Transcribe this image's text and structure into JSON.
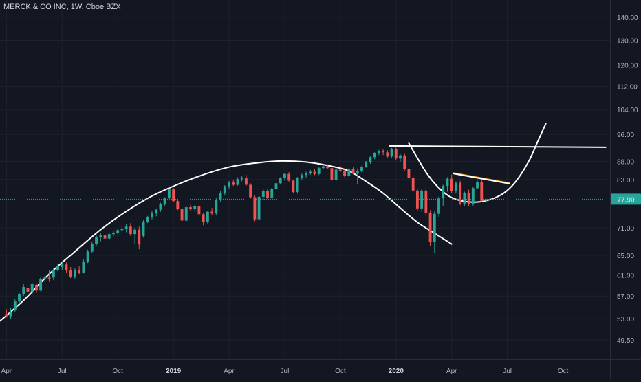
{
  "chart_data": {
    "type": "candlestick",
    "title": "MERCK & CO INC, 1W, Cboe BZX",
    "y_scale": "log",
    "ylim": [
      46.5,
      148
    ],
    "y_ticks": [
      "140.00",
      "130.00",
      "120.00",
      "112.00",
      "104.00",
      "96.00",
      "88.00",
      "83.00",
      "77.90",
      "71.00",
      "65.00",
      "61.00",
      "57.00",
      "53.00",
      "49.50"
    ],
    "y_tick_values": [
      140,
      130,
      120,
      112,
      104,
      96,
      88,
      83,
      77.9,
      71,
      65,
      61,
      57,
      53,
      49.5
    ],
    "x_ticks": [
      "Apr",
      "Jul",
      "Oct",
      "2019",
      "Apr",
      "Jul",
      "Oct",
      "2020",
      "Apr",
      "Jul",
      "Oct"
    ],
    "x_tick_bold": [
      false,
      false,
      false,
      true,
      false,
      false,
      false,
      true,
      false,
      false,
      false
    ],
    "x_tick_weeks": [
      0,
      13,
      26,
      39,
      52,
      65,
      78,
      91,
      104,
      117,
      130
    ],
    "x_domain_weeks": [
      -1.5,
      141
    ],
    "last_price": "77.90",
    "last_price_value": 77.9,
    "hidden_label": "77.90",
    "colors": {
      "up": "#26a69a",
      "down": "#ef5350",
      "background": "#131722",
      "grid": "#1e222d",
      "text": "#b2b5be",
      "drawing": "#ffffff",
      "trend": "#ff9800",
      "price_line": "#26a69a"
    },
    "candles_ohlc": [
      [
        53.8,
        54.6,
        53.2,
        53.4
      ],
      [
        53.4,
        54.9,
        53.0,
        54.2
      ],
      [
        54.5,
        56.4,
        54.1,
        56.0
      ],
      [
        56.0,
        57.7,
        55.6,
        57.4
      ],
      [
        57.4,
        59.3,
        57.0,
        58.7
      ],
      [
        58.5,
        59.1,
        57.4,
        57.8
      ],
      [
        57.8,
        59.7,
        57.3,
        59.3
      ],
      [
        59.1,
        59.4,
        57.6,
        58.0
      ],
      [
        58.0,
        60.6,
        57.8,
        60.3
      ],
      [
        60.3,
        61.1,
        59.6,
        60.6
      ],
      [
        60.5,
        61.9,
        59.8,
        60.3
      ],
      [
        60.5,
        62.4,
        60.0,
        62.0
      ],
      [
        62.0,
        63.3,
        61.7,
        62.8
      ],
      [
        62.6,
        63.6,
        61.9,
        63.1
      ],
      [
        63.1,
        63.5,
        61.5,
        62.0
      ],
      [
        62.0,
        62.6,
        60.4,
        60.7
      ],
      [
        60.7,
        62.4,
        60.3,
        62.0
      ],
      [
        62.0,
        62.7,
        61.2,
        61.5
      ],
      [
        61.5,
        64.2,
        61.3,
        63.7
      ],
      [
        63.7,
        66.2,
        63.4,
        65.8
      ],
      [
        65.8,
        68.0,
        65.5,
        67.5
      ],
      [
        67.5,
        69.4,
        67.0,
        68.9
      ],
      [
        68.9,
        69.8,
        68.0,
        69.3
      ],
      [
        69.3,
        69.9,
        68.4,
        68.6
      ],
      [
        68.6,
        70.0,
        68.3,
        69.6
      ],
      [
        69.6,
        70.3,
        69.1,
        69.8
      ],
      [
        69.8,
        70.9,
        69.5,
        70.5
      ],
      [
        70.5,
        71.7,
        70.1,
        70.8
      ],
      [
        70.8,
        71.9,
        70.0,
        71.3
      ],
      [
        71.3,
        72.1,
        69.2,
        69.6
      ],
      [
        69.6,
        71.1,
        67.5,
        70.6
      ],
      [
        70.6,
        71.3,
        66.3,
        67.3
      ],
      [
        69.2,
        72.8,
        68.8,
        72.3
      ],
      [
        72.4,
        73.8,
        72.1,
        73.6
      ],
      [
        73.6,
        75.0,
        73.0,
        74.4
      ],
      [
        74.4,
        75.6,
        73.7,
        75.3
      ],
      [
        75.3,
        77.0,
        74.8,
        76.7
      ],
      [
        76.7,
        78.4,
        76.2,
        78.1
      ],
      [
        78.1,
        80.9,
        77.6,
        80.4
      ],
      [
        80.4,
        80.8,
        77.2,
        77.4
      ],
      [
        77.4,
        77.9,
        75.2,
        75.5
      ],
      [
        75.5,
        75.8,
        72.3,
        72.7
      ],
      [
        72.7,
        76.1,
        72.4,
        75.9
      ],
      [
        75.9,
        76.5,
        74.9,
        75.4
      ],
      [
        75.4,
        76.4,
        74.8,
        76.1
      ],
      [
        76.1,
        76.6,
        73.8,
        74.2
      ],
      [
        74.2,
        74.6,
        71.6,
        72.4
      ],
      [
        72.4,
        75.0,
        72.0,
        74.8
      ],
      [
        74.8,
        75.7,
        74.0,
        74.4
      ],
      [
        74.4,
        78.1,
        74.0,
        77.8
      ],
      [
        77.8,
        80.0,
        77.3,
        79.5
      ],
      [
        79.5,
        81.5,
        79.0,
        81.2
      ],
      [
        81.2,
        82.6,
        80.6,
        82.2
      ],
      [
        82.2,
        82.9,
        81.3,
        81.6
      ],
      [
        81.6,
        83.6,
        81.4,
        83.1
      ],
      [
        83.1,
        83.9,
        82.5,
        83.3
      ],
      [
        83.3,
        84.2,
        81.3,
        81.6
      ],
      [
        81.6,
        82.0,
        78.0,
        78.4
      ],
      [
        78.4,
        78.9,
        72.5,
        73.0
      ],
      [
        73.0,
        79.0,
        72.7,
        78.5
      ],
      [
        78.5,
        80.6,
        77.7,
        80.0
      ],
      [
        80.0,
        80.5,
        77.9,
        78.3
      ],
      [
        78.3,
        80.8,
        78.0,
        80.5
      ],
      [
        80.5,
        82.5,
        80.2,
        82.0
      ],
      [
        82.0,
        83.6,
        81.7,
        83.4
      ],
      [
        83.4,
        84.8,
        82.7,
        84.5
      ],
      [
        84.5,
        85.0,
        82.4,
        82.7
      ],
      [
        82.7,
        82.9,
        79.4,
        79.7
      ],
      [
        79.7,
        83.7,
        79.3,
        83.4
      ],
      [
        83.4,
        84.8,
        83.0,
        84.2
      ],
      [
        84.2,
        85.1,
        83.5,
        84.8
      ],
      [
        84.8,
        85.6,
        84.3,
        85.1
      ],
      [
        85.1,
        85.9,
        84.2,
        84.5
      ],
      [
        84.5,
        86.5,
        84.2,
        86.1
      ],
      [
        86.1,
        87.1,
        85.7,
        86.6
      ],
      [
        86.6,
        87.2,
        85.8,
        86.1
      ],
      [
        86.1,
        86.5,
        82.4,
        82.8
      ],
      [
        82.8,
        86.4,
        82.5,
        85.7
      ],
      [
        85.7,
        86.7,
        85.0,
        85.4
      ],
      [
        85.4,
        86.1,
        83.6,
        84.0
      ],
      [
        84.0,
        86.2,
        83.6,
        85.8
      ],
      [
        85.8,
        86.3,
        84.3,
        84.6
      ],
      [
        84.6,
        86.0,
        81.7,
        85.3
      ],
      [
        85.3,
        86.8,
        84.9,
        86.5
      ],
      [
        86.5,
        88.1,
        86.2,
        87.8
      ],
      [
        87.8,
        89.4,
        87.3,
        89.2
      ],
      [
        89.2,
        90.6,
        88.6,
        90.3
      ],
      [
        90.3,
        91.3,
        89.8,
        91.0
      ],
      [
        91.0,
        91.6,
        89.8,
        90.6
      ],
      [
        90.6,
        91.2,
        88.9,
        89.4
      ],
      [
        89.4,
        91.9,
        89.1,
        91.5
      ],
      [
        91.5,
        92.0,
        88.4,
        88.8
      ],
      [
        88.8,
        90.1,
        87.8,
        89.7
      ],
      [
        89.7,
        90.2,
        85.4,
        85.8
      ],
      [
        85.8,
        86.4,
        83.0,
        83.5
      ],
      [
        83.5,
        84.1,
        79.6,
        80.1
      ],
      [
        80.1,
        80.6,
        75.0,
        75.6
      ],
      [
        75.6,
        80.5,
        74.8,
        80.1
      ],
      [
        80.1,
        80.8,
        73.6,
        74.5
      ],
      [
        74.5,
        75.2,
        67.0,
        67.8
      ],
      [
        67.8,
        74.9,
        65.5,
        74.3
      ],
      [
        74.3,
        78.6,
        73.5,
        78.1
      ],
      [
        78.1,
        81.6,
        76.1,
        81.3
      ],
      [
        81.3,
        83.6,
        79.8,
        83.2
      ],
      [
        83.2,
        84.3,
        79.5,
        79.9
      ],
      [
        79.9,
        82.5,
        79.3,
        82.1
      ],
      [
        82.1,
        82.6,
        76.4,
        76.8
      ],
      [
        76.8,
        79.8,
        76.2,
        79.5
      ],
      [
        79.5,
        80.3,
        76.2,
        76.6
      ],
      [
        76.6,
        81.1,
        76.3,
        80.7
      ],
      [
        80.7,
        82.9,
        80.4,
        82.4
      ],
      [
        82.4,
        82.8,
        77.1,
        77.5
      ],
      [
        77.5,
        79.5,
        75.1,
        77.9
      ]
    ],
    "drawings": [
      {
        "kind": "curve",
        "color": "#ffffff",
        "points": [
          [
            -1.5,
            52.6
          ],
          [
            4,
            56.2
          ],
          [
            10,
            61.2
          ],
          [
            16,
            65.8
          ],
          [
            22,
            70.6
          ],
          [
            28,
            74.9
          ],
          [
            34,
            78.7
          ],
          [
            40,
            81.7
          ],
          [
            46,
            84.3
          ],
          [
            52,
            86.4
          ],
          [
            58,
            87.5
          ],
          [
            64,
            88.1
          ],
          [
            70,
            87.8
          ],
          [
            76,
            86.6
          ],
          [
            80,
            85.3
          ],
          [
            84,
            82.5
          ],
          [
            88,
            79.4
          ],
          [
            92,
            75.7
          ],
          [
            96,
            72.3
          ],
          [
            100,
            69.8
          ],
          [
            104,
            67.4
          ]
        ]
      },
      {
        "kind": "line",
        "color": "#ffffff",
        "points": [
          [
            89.5,
            92.5
          ],
          [
            140,
            92.1
          ]
        ]
      },
      {
        "kind": "curve",
        "color": "#ffffff",
        "points": [
          [
            94,
            93.3
          ],
          [
            98,
            85.0
          ],
          [
            101,
            80.8
          ],
          [
            104,
            78.3
          ],
          [
            108,
            77.2
          ],
          [
            112,
            77.5
          ],
          [
            116,
            79.3
          ],
          [
            119,
            82.5
          ],
          [
            122,
            88.0
          ],
          [
            124,
            93.5
          ],
          [
            126,
            99.4
          ]
        ]
      },
      {
        "kind": "line",
        "color": "#ff9800",
        "points": [
          [
            104.5,
            84.8
          ],
          [
            117.5,
            82.1
          ]
        ]
      },
      {
        "kind": "line",
        "color": "#ffffff",
        "points": [
          [
            104.5,
            84.8
          ],
          [
            117.5,
            82.1
          ]
        ]
      }
    ]
  }
}
